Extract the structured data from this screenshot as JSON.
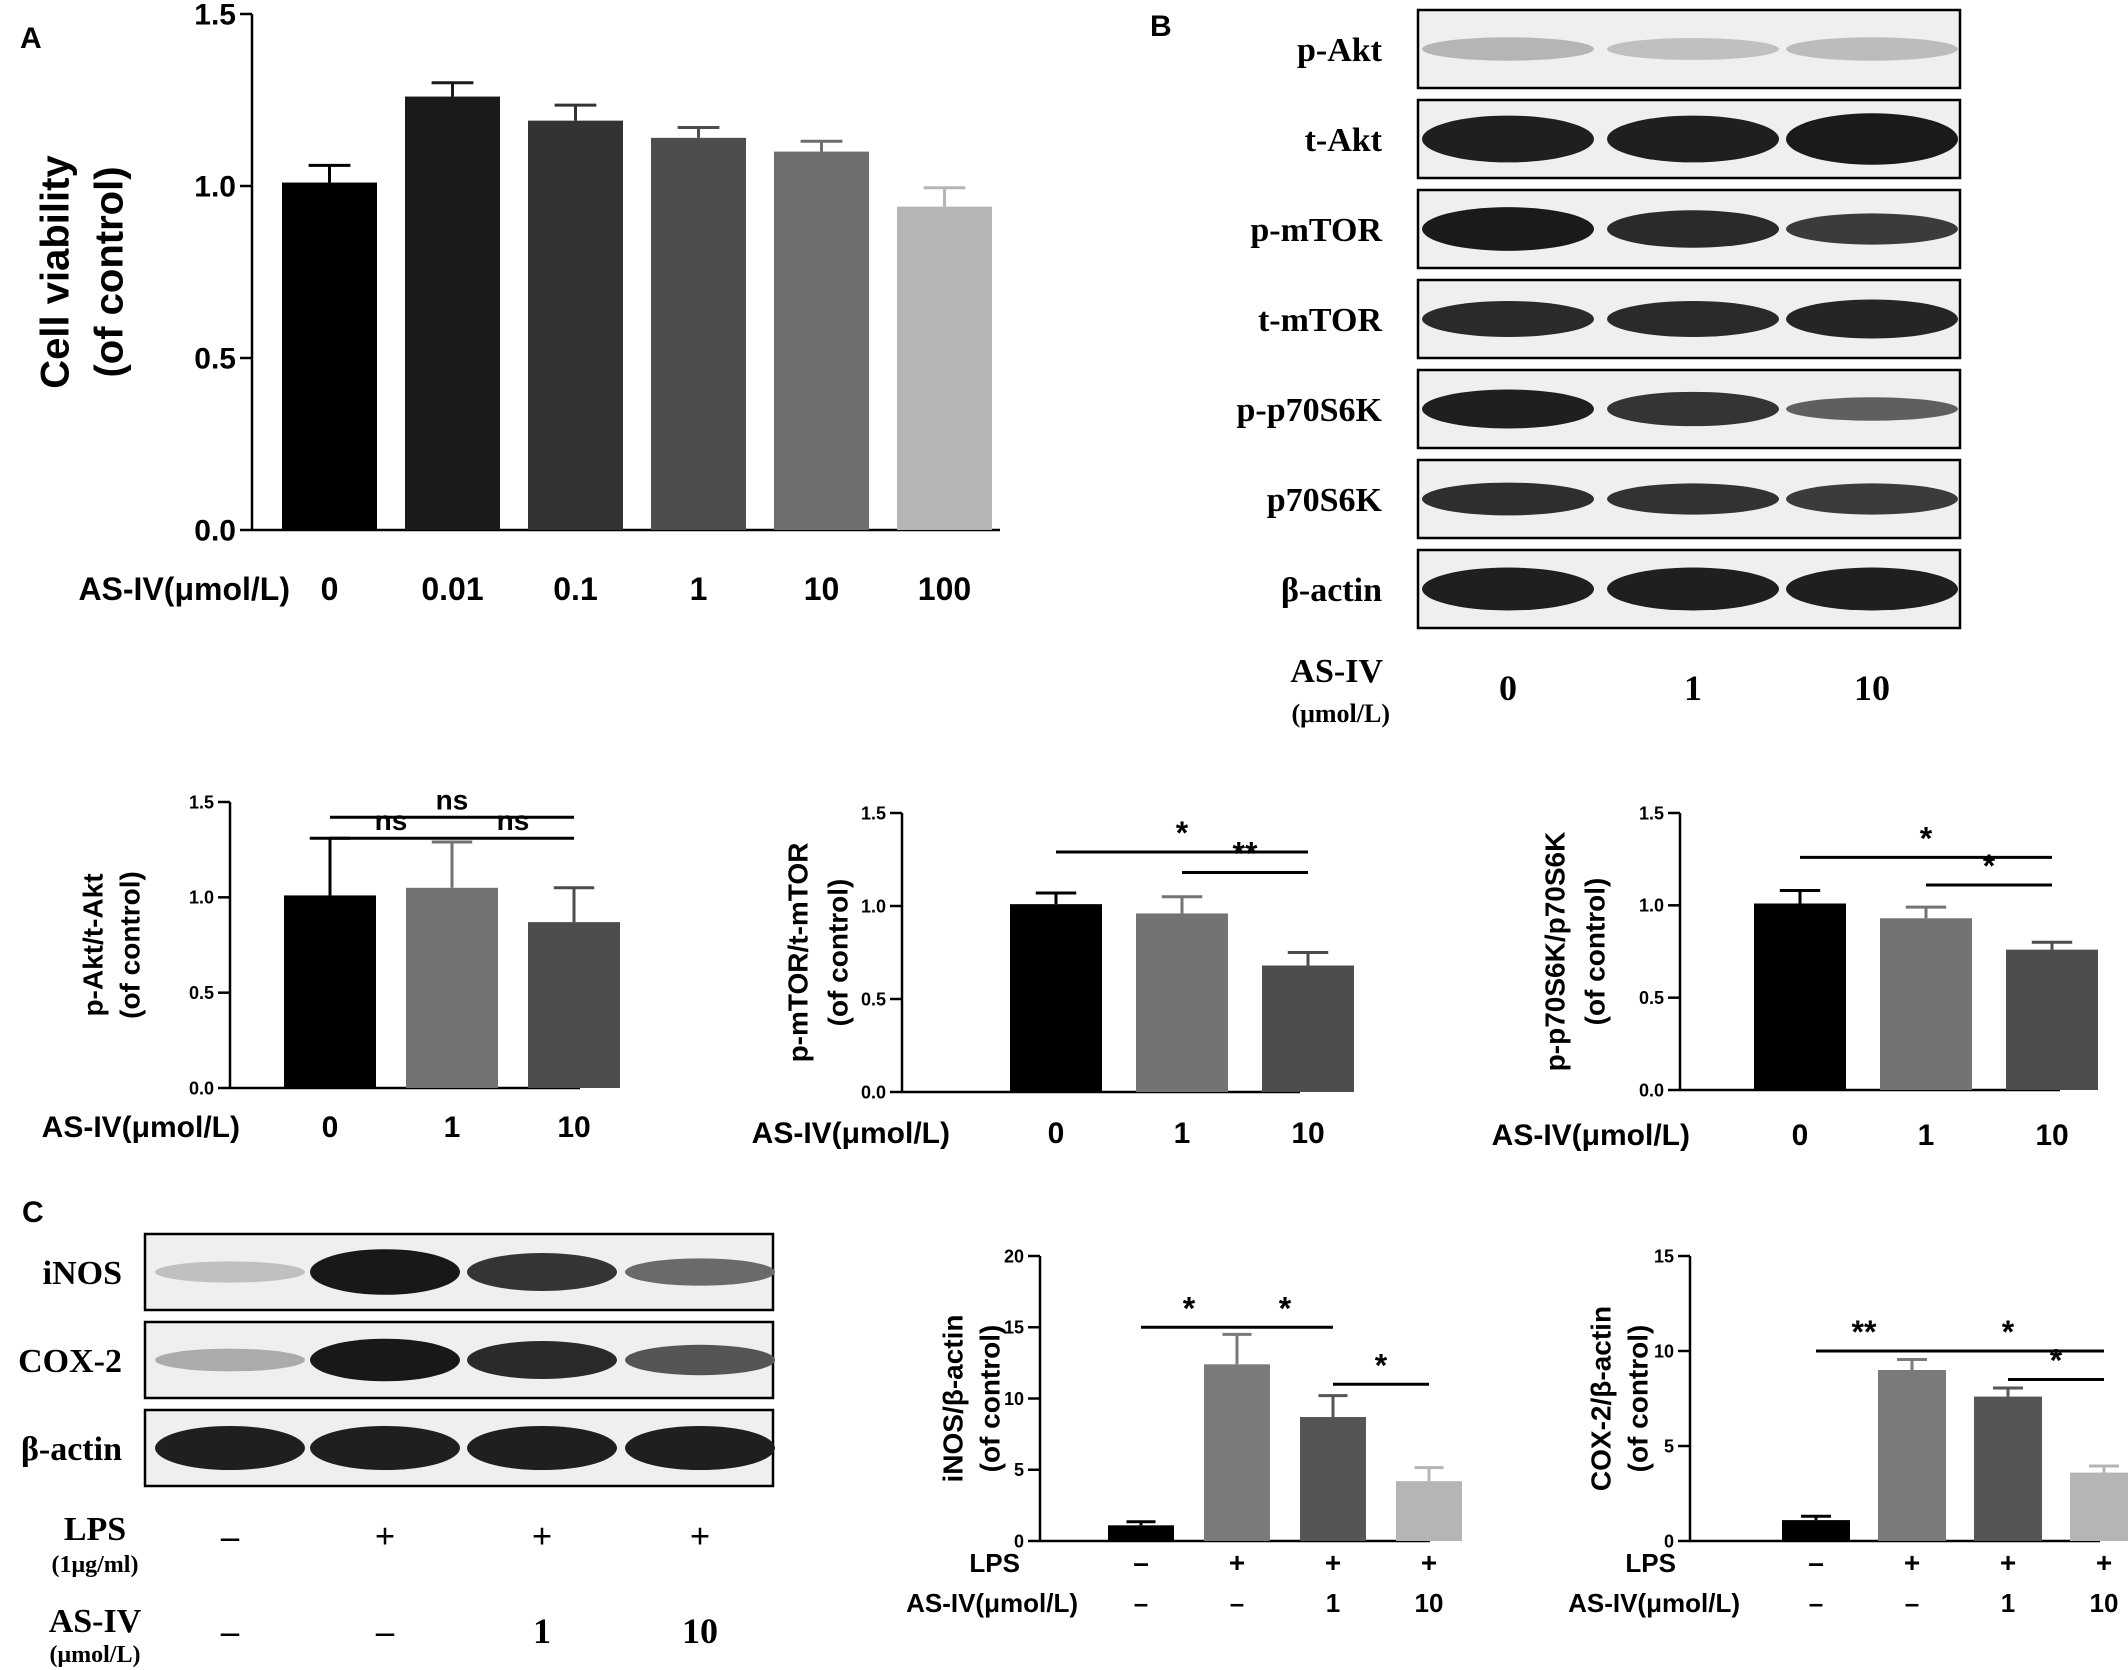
{
  "panels": {
    "A": {
      "label": "A"
    },
    "B": {
      "label": "B"
    },
    "C": {
      "label": "C"
    }
  },
  "chart_data": [
    {
      "id": "A",
      "type": "bar",
      "ylabel_lines": [
        "Cell viability",
        "(of control)"
      ],
      "xlabel": "AS-IV(μmol/L)",
      "categories": [
        "0",
        "0.01",
        "0.1",
        "1",
        "10",
        "100"
      ],
      "values": [
        1.01,
        1.26,
        1.19,
        1.14,
        1.1,
        0.94
      ],
      "errors": [
        0.05,
        0.04,
        0.045,
        0.03,
        0.03,
        0.055
      ],
      "colors": [
        "#000000",
        "#1a1a1a",
        "#333333",
        "#4d4d4d",
        "#6e6e6e",
        "#b5b5b5"
      ],
      "ylim": [
        0,
        1.5
      ],
      "yticks": [
        "0.0",
        "0.5",
        "1.0",
        "1.5"
      ],
      "significance": []
    },
    {
      "id": "B1",
      "type": "bar",
      "ylabel_lines": [
        "p-Akt/t-Akt",
        "(of control)"
      ],
      "xlabel": "AS-IV(μmol/L)",
      "categories": [
        "0",
        "1",
        "10"
      ],
      "values": [
        1.01,
        1.05,
        0.87
      ],
      "errors": [
        0.3,
        0.24,
        0.18
      ],
      "colors": [
        "#000000",
        "#737373",
        "#4d4d4d"
      ],
      "ylim": [
        0,
        1.5
      ],
      "yticks": [
        "0.0",
        "0.5",
        "1.0",
        "1.5"
      ],
      "significance": [
        {
          "from": 0,
          "to": 2,
          "level": 1.42,
          "text": "ns"
        },
        {
          "from": 0,
          "to": 1,
          "level": 1.31,
          "text": "ns"
        },
        {
          "from": 1,
          "to": 2,
          "level": 1.31,
          "text": "ns"
        }
      ]
    },
    {
      "id": "B2",
      "type": "bar",
      "ylabel_lines": [
        "p-mTOR/t-mTOR",
        "(of control)"
      ],
      "xlabel": "AS-IV(μmol/L)",
      "categories": [
        "0",
        "1",
        "10"
      ],
      "values": [
        1.01,
        0.96,
        0.68
      ],
      "errors": [
        0.06,
        0.09,
        0.07
      ],
      "colors": [
        "#000000",
        "#737373",
        "#4d4d4d"
      ],
      "ylim": [
        0,
        1.5
      ],
      "yticks": [
        "0.0",
        "0.5",
        "1.0",
        "1.5"
      ],
      "significance": [
        {
          "from": 0,
          "to": 2,
          "level": 1.29,
          "text": "*"
        },
        {
          "from": 1,
          "to": 2,
          "level": 1.18,
          "text": "**"
        }
      ]
    },
    {
      "id": "B3",
      "type": "bar",
      "ylabel_lines": [
        "p-p70S6K/p70S6K",
        "(of control)"
      ],
      "xlabel": "AS-IV(μmol/L)",
      "categories": [
        "0",
        "1",
        "10"
      ],
      "values": [
        1.01,
        0.93,
        0.76
      ],
      "errors": [
        0.07,
        0.06,
        0.04
      ],
      "colors": [
        "#000000",
        "#737373",
        "#4d4d4d"
      ],
      "ylim": [
        0,
        1.5
      ],
      "yticks": [
        "0.0",
        "0.5",
        "1.0",
        "1.5"
      ],
      "significance": [
        {
          "from": 0,
          "to": 2,
          "level": 1.26,
          "text": "*"
        },
        {
          "from": 1,
          "to": 2,
          "level": 1.11,
          "text": "*"
        }
      ]
    },
    {
      "id": "C1",
      "type": "bar",
      "ylabel_lines": [
        "iNOS/β-actin",
        "(of control)"
      ],
      "row1_label": "LPS",
      "row1": [
        "–",
        "+",
        "+",
        "+"
      ],
      "row2_label": "AS-IV(μmol/L)",
      "row2": [
        "–",
        "–",
        "1",
        "10"
      ],
      "values": [
        1.1,
        12.4,
        8.7,
        4.2
      ],
      "errors": [
        0.25,
        2.1,
        1.5,
        0.95
      ],
      "colors": [
        "#000000",
        "#7a7a7a",
        "#555555",
        "#b5b5b5"
      ],
      "ylim": [
        0,
        20
      ],
      "yticks": [
        "0",
        "5",
        "10",
        "15",
        "20"
      ],
      "significance": [
        {
          "from": 0,
          "to": 1,
          "level": 15.0,
          "text": "*"
        },
        {
          "from": 1,
          "to": 2,
          "level": 15.0,
          "text": "*"
        },
        {
          "from": 2,
          "to": 3,
          "level": 11.0,
          "text": "*"
        }
      ]
    },
    {
      "id": "C2",
      "type": "bar",
      "ylabel_lines": [
        "COX-2/β-actin",
        "(of control)"
      ],
      "row1_label": "LPS",
      "row1": [
        "–",
        "+",
        "+",
        "+"
      ],
      "row2_label": "AS-IV(μmol/L)",
      "row2": [
        "–",
        "–",
        "1",
        "10"
      ],
      "values": [
        1.1,
        9.0,
        7.6,
        3.6
      ],
      "errors": [
        0.2,
        0.55,
        0.45,
        0.35
      ],
      "colors": [
        "#000000",
        "#7a7a7a",
        "#555555",
        "#b5b5b5"
      ],
      "ylim": [
        0,
        15
      ],
      "yticks": [
        "0",
        "5",
        "10",
        "15"
      ],
      "significance": [
        {
          "from": 0,
          "to": 1,
          "level": 10.0,
          "text": "**"
        },
        {
          "from": 1,
          "to": 3,
          "level": 10.0,
          "text": "*"
        },
        {
          "from": 2,
          "to": 3,
          "level": 8.5,
          "text": "*"
        }
      ]
    }
  ],
  "blots": {
    "B": {
      "rows": [
        {
          "label": "p-Akt",
          "intensity": [
            0.25,
            0.2,
            0.22
          ],
          "thickness": [
            0.3,
            0.28,
            0.3
          ]
        },
        {
          "label": "t-Akt",
          "intensity": [
            0.95,
            0.95,
            0.97
          ],
          "thickness": [
            0.6,
            0.6,
            0.66
          ]
        },
        {
          "label": "p-mTOR",
          "intensity": [
            0.97,
            0.9,
            0.82
          ],
          "thickness": [
            0.56,
            0.48,
            0.4
          ]
        },
        {
          "label": "t-mTOR",
          "intensity": [
            0.9,
            0.9,
            0.92
          ],
          "thickness": [
            0.46,
            0.46,
            0.5
          ]
        },
        {
          "label": "p-p70S6K",
          "intensity": [
            0.95,
            0.85,
            0.65
          ],
          "thickness": [
            0.5,
            0.44,
            0.3
          ]
        },
        {
          "label": "p70S6K",
          "intensity": [
            0.88,
            0.86,
            0.82
          ],
          "thickness": [
            0.42,
            0.4,
            0.4
          ]
        },
        {
          "label": "β-actin",
          "intensity": [
            0.95,
            0.95,
            0.95
          ],
          "thickness": [
            0.55,
            0.55,
            0.55
          ]
        }
      ],
      "xlabel_line1": "AS-IV",
      "xlabel_line2": "(μmol/L)",
      "lanes": [
        "0",
        "1",
        "10"
      ]
    },
    "C": {
      "rows": [
        {
          "label": "iNOS",
          "intensity": [
            0.2,
            0.98,
            0.85,
            0.6
          ],
          "thickness": [
            0.28,
            0.6,
            0.5,
            0.36
          ]
        },
        {
          "label": "COX-2",
          "intensity": [
            0.3,
            0.98,
            0.9,
            0.7
          ],
          "thickness": [
            0.3,
            0.56,
            0.5,
            0.4
          ]
        },
        {
          "label": "β-actin",
          "intensity": [
            0.95,
            0.95,
            0.95,
            0.95
          ],
          "thickness": [
            0.58,
            0.58,
            0.58,
            0.58
          ]
        }
      ],
      "row1_label_line1": "LPS",
      "row1_label_line2": "(1μg/ml)",
      "row1": [
        "–",
        "+",
        "+",
        "+"
      ],
      "row2_label_line1": "AS-IV",
      "row2_label_line2": "(μmol/L)",
      "row2": [
        "–",
        "–",
        "1",
        "10"
      ]
    }
  }
}
